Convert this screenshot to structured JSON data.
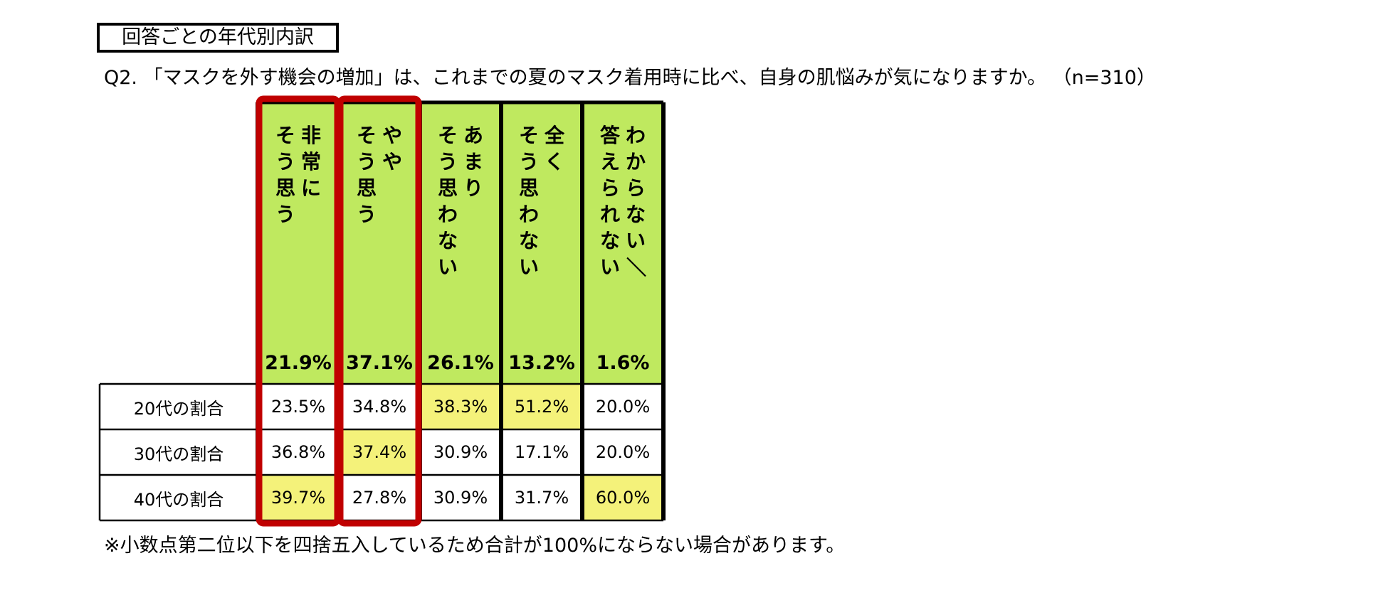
{
  "section_title": "回答ごとの年代別内訳",
  "question": "Q2. 「マスクを外す機会の増加」は、これまでの夏のマスク着用時に比べ、自身の肌悩みが気になりますか。 （n=310）",
  "note": "※小数点第二位以下を四捨五入しているため合計が100%にならない場合があります。",
  "colors": {
    "header_fill": "#bfe95f",
    "highlight_fill": "#f4f27a",
    "red_frame": "#c00000",
    "grid": "#000000"
  },
  "chart_data": {
    "type": "table",
    "columns": [
      {
        "label_lines": [
          "非常に",
          "そう思う"
        ],
        "total": "21.9%",
        "highlighted_frame": true
      },
      {
        "label_lines": [
          "やや",
          "そう思う"
        ],
        "total": "37.1%",
        "highlighted_frame": true
      },
      {
        "label_lines": [
          "あまり",
          "そう思わない"
        ],
        "total": "26.1%",
        "highlighted_frame": false
      },
      {
        "label_lines": [
          "全く",
          "そう思わない"
        ],
        "total": "13.2%",
        "highlighted_frame": false
      },
      {
        "label_lines": [
          "わからない／",
          "答えられない"
        ],
        "total": "1.6%",
        "highlighted_frame": false
      }
    ],
    "rows": [
      {
        "label": "20代の割合",
        "values": [
          "23.5%",
          "34.8%",
          "38.3%",
          "51.2%",
          "20.0%"
        ],
        "highlight": [
          false,
          false,
          true,
          true,
          false
        ]
      },
      {
        "label": "30代の割合",
        "values": [
          "36.8%",
          "37.4%",
          "30.9%",
          "17.1%",
          "20.0%"
        ],
        "highlight": [
          false,
          true,
          false,
          false,
          false
        ]
      },
      {
        "label": "40代の割合",
        "values": [
          "39.7%",
          "27.8%",
          "30.9%",
          "31.7%",
          "60.0%"
        ],
        "highlight": [
          true,
          false,
          false,
          false,
          true
        ]
      }
    ]
  }
}
